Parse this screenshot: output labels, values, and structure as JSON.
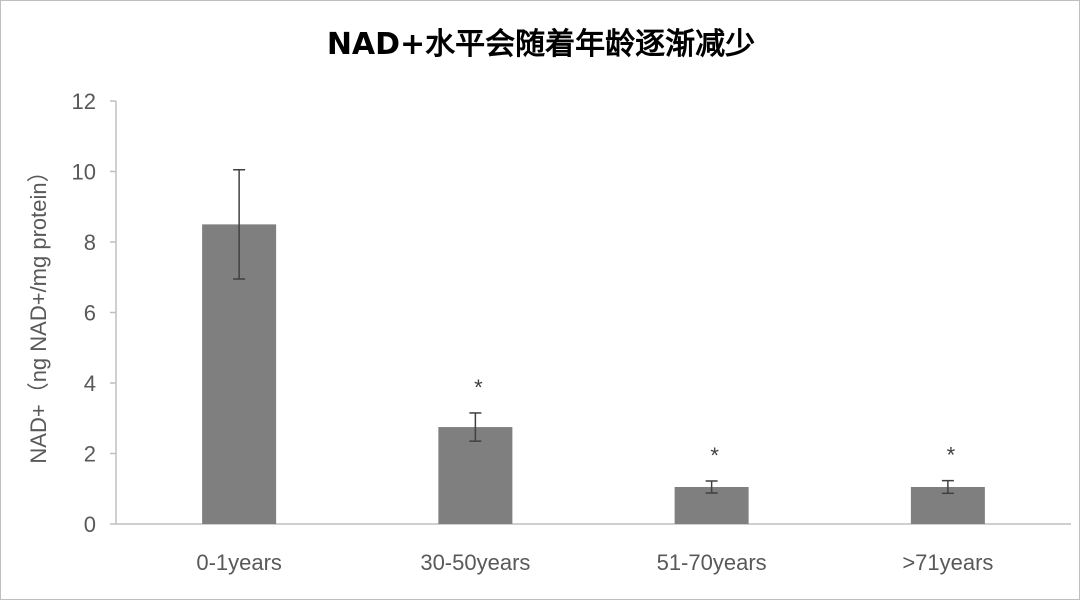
{
  "chart_data": {
    "type": "bar",
    "title": "NAD+水平会随着年龄逐渐减少",
    "xlabel": "",
    "ylabel": "NAD+（ng NAD+/mg protein）",
    "categories": [
      "0-1years",
      "30-50years",
      "51-70years",
      ">71years"
    ],
    "series": [
      {
        "values": [
          8.5,
          2.75,
          1.05,
          1.05
        ],
        "error": [
          1.55,
          0.4,
          0.17,
          0.18
        ]
      }
    ],
    "significance": [
      "",
      "*",
      "*",
      "*"
    ],
    "ylim": [
      0,
      12
    ],
    "yticks": [
      "0",
      "2",
      "4",
      "6",
      "8",
      "10",
      "12"
    ],
    "grid": false,
    "legend": "none",
    "colors": {
      "bar": "#7f7f7f",
      "axis": "#bfbfbf",
      "text": "#595959"
    }
  }
}
